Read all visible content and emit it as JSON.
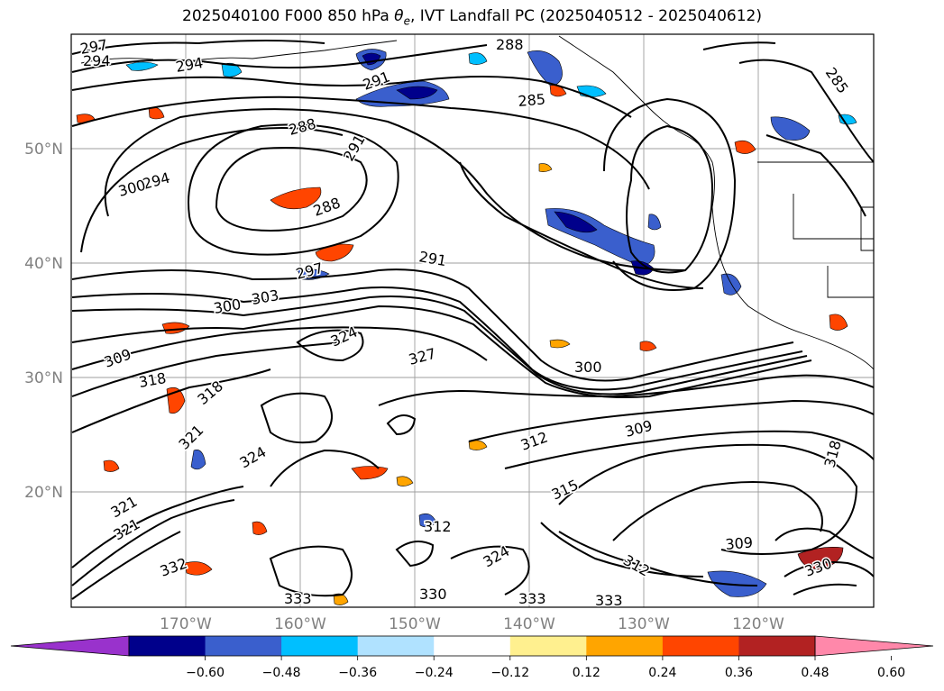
{
  "title": {
    "main": "2025040100 F000 850 hPa ",
    "var": "θ",
    "sub": "e",
    "rest": ", IVT Landfall PC (2025040512 - 2025040612)"
  },
  "axes": {
    "lat_labels": [
      "50°N",
      "40°N",
      "30°N",
      "20°N"
    ],
    "lon_labels": [
      "170°W",
      "160°W",
      "150°W",
      "140°W",
      "130°W",
      "120°W"
    ]
  },
  "colorbar": {
    "colors": [
      "#9932cc",
      "#00008b",
      "#3a5fcd",
      "#00bfff",
      "#b0e2ff",
      "#ffffff",
      "#fff08f",
      "#ffa500",
      "#ff4500",
      "#b22222",
      "#ff88aa"
    ],
    "ticks": [
      "−0.60",
      "−0.48",
      "−0.36",
      "−0.24",
      "−0.12",
      "0.12",
      "0.24",
      "0.36",
      "0.48",
      "0.60"
    ]
  },
  "contour_labels": [
    "297",
    "294",
    "294",
    "291",
    "288",
    "285",
    "288",
    "285",
    "291",
    "294",
    "288",
    "300",
    "291",
    "297",
    "300",
    "303",
    "309",
    "318",
    "324",
    "327",
    "300",
    "318",
    "321",
    "312",
    "309",
    "321",
    "324",
    "312",
    "315",
    "309",
    "321",
    "330",
    "312",
    "324",
    "332",
    "333",
    "330",
    "333",
    "333",
    "318"
  ]
}
